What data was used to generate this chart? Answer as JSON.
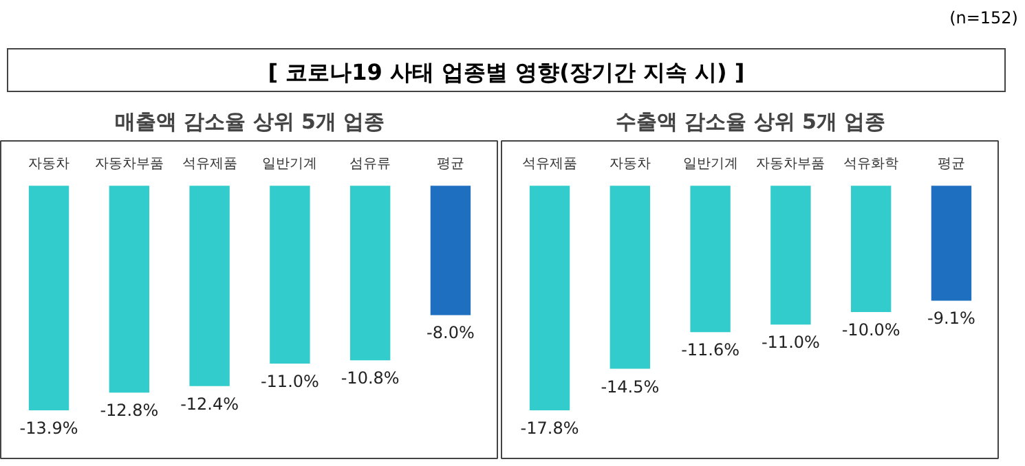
{
  "chart_data": [
    {
      "type": "bar",
      "title": "[ 코로나19 사태 업종별 영향(장기간 지속 시) ]",
      "subtitle": "매출액 감소율 상위 5개 업종",
      "annotations": [
        "(n=152)"
      ],
      "categories": [
        "자동차",
        "자동차부품",
        "석유제품",
        "일반기계",
        "섬유류",
        "평균"
      ],
      "values": [
        -13.9,
        -12.8,
        -12.4,
        -11.0,
        -10.8,
        -8.0
      ],
      "colors": [
        "#33cccc",
        "#33cccc",
        "#33cccc",
        "#33cccc",
        "#33cccc",
        "#1f6fc0"
      ],
      "value_labels": [
        "-13.9%",
        "-12.8%",
        "-12.4%",
        "-11.0%",
        "-10.8%",
        "-8.0%"
      ]
    },
    {
      "type": "bar",
      "subtitle": "수출액 감소율 상위 5개 업종",
      "categories": [
        "석유제품",
        "자동차",
        "일반기계",
        "자동차부품",
        "석유화학",
        "평균"
      ],
      "values": [
        -17.8,
        -14.5,
        -11.6,
        -11.0,
        -10.0,
        -9.1
      ],
      "colors": [
        "#33cccc",
        "#33cccc",
        "#33cccc",
        "#33cccc",
        "#33cccc",
        "#1f6fc0"
      ],
      "value_labels": [
        "-17.8%",
        "-14.5%",
        "-11.6%",
        "-11.0%",
        "-10.0%",
        "-9.1%"
      ]
    }
  ]
}
